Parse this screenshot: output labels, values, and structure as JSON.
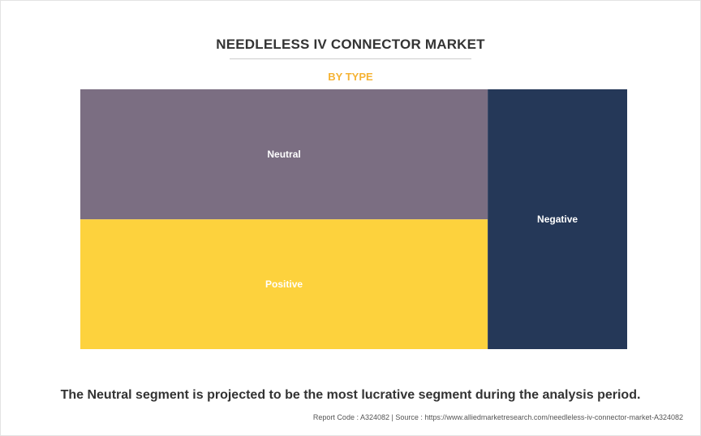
{
  "header": {
    "title": "NEEDLELESS IV CONNECTOR MARKET",
    "subtitle": "BY TYPE"
  },
  "chart_data": {
    "type": "treemap",
    "title": "NEEDLELESS IV CONNECTOR MARKET",
    "subtitle": "BY TYPE",
    "segments": [
      {
        "name": "Neutral",
        "share": 0.373,
        "color": "#7b6e82"
      },
      {
        "name": "Positive",
        "share": 0.372,
        "color": "#fdd23d"
      },
      {
        "name": "Negative",
        "share": 0.255,
        "color": "#253858"
      }
    ]
  },
  "footer": {
    "caption": "The Neutral segment is projected to be the most lucrative segment during the analysis period.",
    "source": "Report Code : A324082  |  Source : https://www.alliedmarketresearch.com/needleless-iv-connector-market-A324082"
  },
  "colors": {
    "title": "#333333",
    "subtitle": "#f5b335"
  }
}
